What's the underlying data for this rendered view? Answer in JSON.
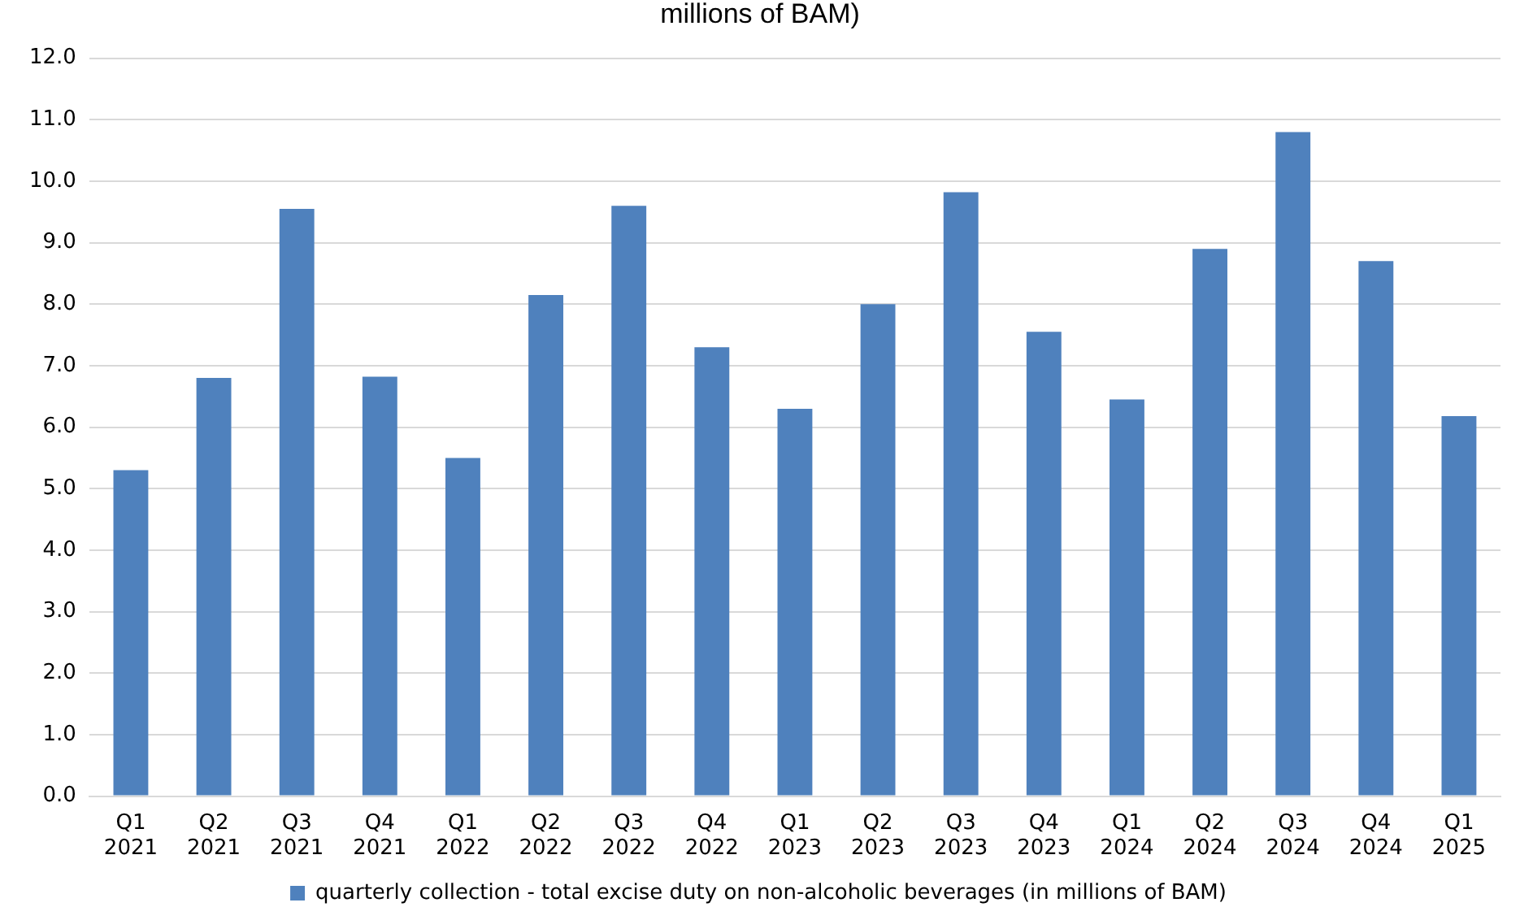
{
  "chart_data": {
    "type": "bar",
    "title": "millions of BAM)",
    "categories": [
      "Q1 2021",
      "Q2 2021",
      "Q3 2021",
      "Q4 2021",
      "Q1 2022",
      "Q2 2022",
      "Q3 2022",
      "Q4 2022",
      "Q1 2023",
      "Q2 2023",
      "Q3 2023",
      "Q4 2023",
      "Q1 2024",
      "Q2 2024",
      "Q3 2024",
      "Q4 2024",
      "Q1 2025"
    ],
    "series": [
      {
        "name": "quarterly collection - total excise duty on non-alcoholic beverages (in millions of BAM)",
        "color": "#4f81bd",
        "values": [
          5.3,
          6.8,
          9.55,
          6.82,
          5.5,
          8.15,
          9.6,
          7.3,
          6.3,
          8.0,
          9.82,
          7.55,
          6.45,
          8.9,
          10.8,
          8.7,
          6.18
        ]
      }
    ],
    "ylim": [
      0,
      12
    ],
    "yticks": [
      {
        "value": 0,
        "label": "0.0"
      },
      {
        "value": 1,
        "label": "1.0"
      },
      {
        "value": 2,
        "label": "2.0"
      },
      {
        "value": 3,
        "label": "3.0"
      },
      {
        "value": 4,
        "label": "4.0"
      },
      {
        "value": 5,
        "label": "5.0"
      },
      {
        "value": 6,
        "label": "6.0"
      },
      {
        "value": 7,
        "label": "7.0"
      },
      {
        "value": 8,
        "label": "8.0"
      },
      {
        "value": 9,
        "label": "9.0"
      },
      {
        "value": 10,
        "label": "10.0"
      },
      {
        "value": 11,
        "label": "11.0"
      },
      {
        "value": 12,
        "label": "12.0"
      }
    ],
    "grid": "y",
    "legend": "bottom"
  }
}
